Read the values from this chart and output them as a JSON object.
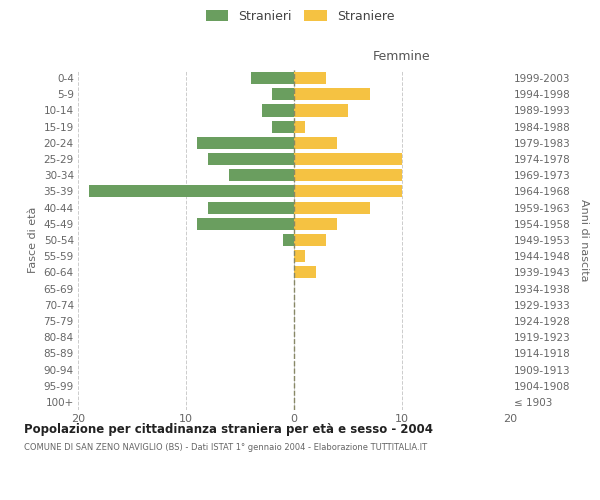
{
  "age_groups": [
    "100+",
    "95-99",
    "90-94",
    "85-89",
    "80-84",
    "75-79",
    "70-74",
    "65-69",
    "60-64",
    "55-59",
    "50-54",
    "45-49",
    "40-44",
    "35-39",
    "30-34",
    "25-29",
    "20-24",
    "15-19",
    "10-14",
    "5-9",
    "0-4"
  ],
  "birth_years": [
    "≤ 1903",
    "1904-1908",
    "1909-1913",
    "1914-1918",
    "1919-1923",
    "1924-1928",
    "1929-1933",
    "1934-1938",
    "1939-1943",
    "1944-1948",
    "1949-1953",
    "1954-1958",
    "1959-1963",
    "1964-1968",
    "1969-1973",
    "1974-1978",
    "1979-1983",
    "1984-1988",
    "1989-1993",
    "1994-1998",
    "1999-2003"
  ],
  "males": [
    0,
    0,
    0,
    0,
    0,
    0,
    0,
    0,
    0,
    0,
    1,
    9,
    8,
    19,
    6,
    8,
    9,
    2,
    3,
    2,
    4
  ],
  "females": [
    0,
    0,
    0,
    0,
    0,
    0,
    0,
    0,
    2,
    1,
    3,
    4,
    7,
    10,
    10,
    10,
    4,
    1,
    5,
    7,
    3
  ],
  "male_color": "#6a9e5f",
  "female_color": "#f5c242",
  "background_color": "#ffffff",
  "grid_color": "#cccccc",
  "title": "Popolazione per cittadinanza straniera per età e sesso - 2004",
  "subtitle": "COMUNE DI SAN ZENO NAVIGLIO (BS) - Dati ISTAT 1° gennaio 2004 - Elaborazione TUTTITALIA.IT",
  "legend_stranieri": "Stranieri",
  "legend_straniere": "Straniere",
  "xlabel_right": "Femmine",
  "ylabel_left": "Fasce di età",
  "ylabel_right": "Anni di nascita",
  "xlim": 20
}
